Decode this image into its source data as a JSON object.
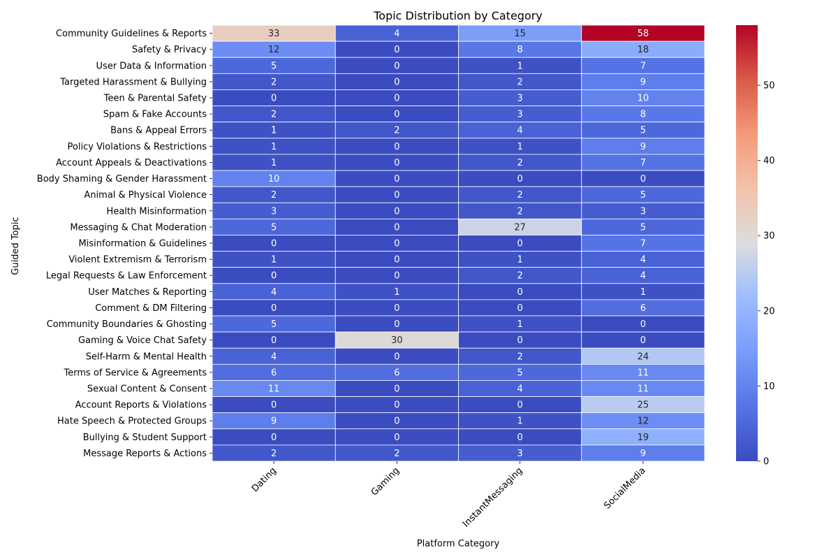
{
  "chart_data": {
    "type": "heatmap",
    "title": "Topic Distribution by Category",
    "xlabel": "Platform Category",
    "ylabel": "Guided Topic",
    "categories": [
      "Dating",
      "Gaming",
      "InstantMessaging",
      "SocialMedia"
    ],
    "rows": [
      "Community Guidelines & Reports",
      "Safety & Privacy",
      "User Data & Information",
      "Targeted Harassment & Bullying",
      "Teen & Parental Safety",
      "Spam & Fake Accounts",
      "Bans & Appeal Errors",
      "Policy Violations & Restrictions",
      "Account Appeals & Deactivations",
      "Body Shaming & Gender Harassment",
      "Animal & Physical Violence",
      "Health Misinformation",
      "Messaging & Chat Moderation",
      "Misinformation & Guidelines",
      "Violent Extremism & Terrorism",
      "Legal Requests & Law Enforcement",
      "User Matches & Reporting",
      "Comment & DM Filtering",
      "Community Boundaries & Ghosting",
      "Gaming & Voice Chat Safety",
      "Self-Harm & Mental Health",
      "Terms of Service & Agreements",
      "Sexual Content & Consent",
      "Account Reports & Violations",
      "Hate Speech & Protected Groups",
      "Bullying & Student Support",
      "Message Reports & Actions"
    ],
    "values": [
      [
        33,
        4,
        15,
        58
      ],
      [
        12,
        0,
        8,
        18
      ],
      [
        5,
        0,
        1,
        7
      ],
      [
        2,
        0,
        2,
        9
      ],
      [
        0,
        0,
        3,
        10
      ],
      [
        2,
        0,
        3,
        8
      ],
      [
        1,
        2,
        4,
        5
      ],
      [
        1,
        0,
        1,
        9
      ],
      [
        1,
        0,
        2,
        7
      ],
      [
        10,
        0,
        0,
        0
      ],
      [
        2,
        0,
        2,
        5
      ],
      [
        3,
        0,
        2,
        3
      ],
      [
        5,
        0,
        27,
        5
      ],
      [
        0,
        0,
        0,
        7
      ],
      [
        1,
        0,
        1,
        4
      ],
      [
        0,
        0,
        2,
        4
      ],
      [
        4,
        1,
        0,
        1
      ],
      [
        0,
        0,
        0,
        6
      ],
      [
        5,
        0,
        1,
        0
      ],
      [
        0,
        30,
        0,
        0
      ],
      [
        4,
        0,
        2,
        24
      ],
      [
        6,
        6,
        5,
        11
      ],
      [
        11,
        0,
        4,
        11
      ],
      [
        0,
        0,
        0,
        25
      ],
      [
        9,
        0,
        1,
        12
      ],
      [
        0,
        0,
        0,
        19
      ],
      [
        2,
        2,
        3,
        9
      ]
    ],
    "colormap": "coolwarm",
    "vmin": 0,
    "vmax": 58,
    "colorbar_ticks": [
      0,
      10,
      20,
      30,
      40,
      50
    ]
  }
}
